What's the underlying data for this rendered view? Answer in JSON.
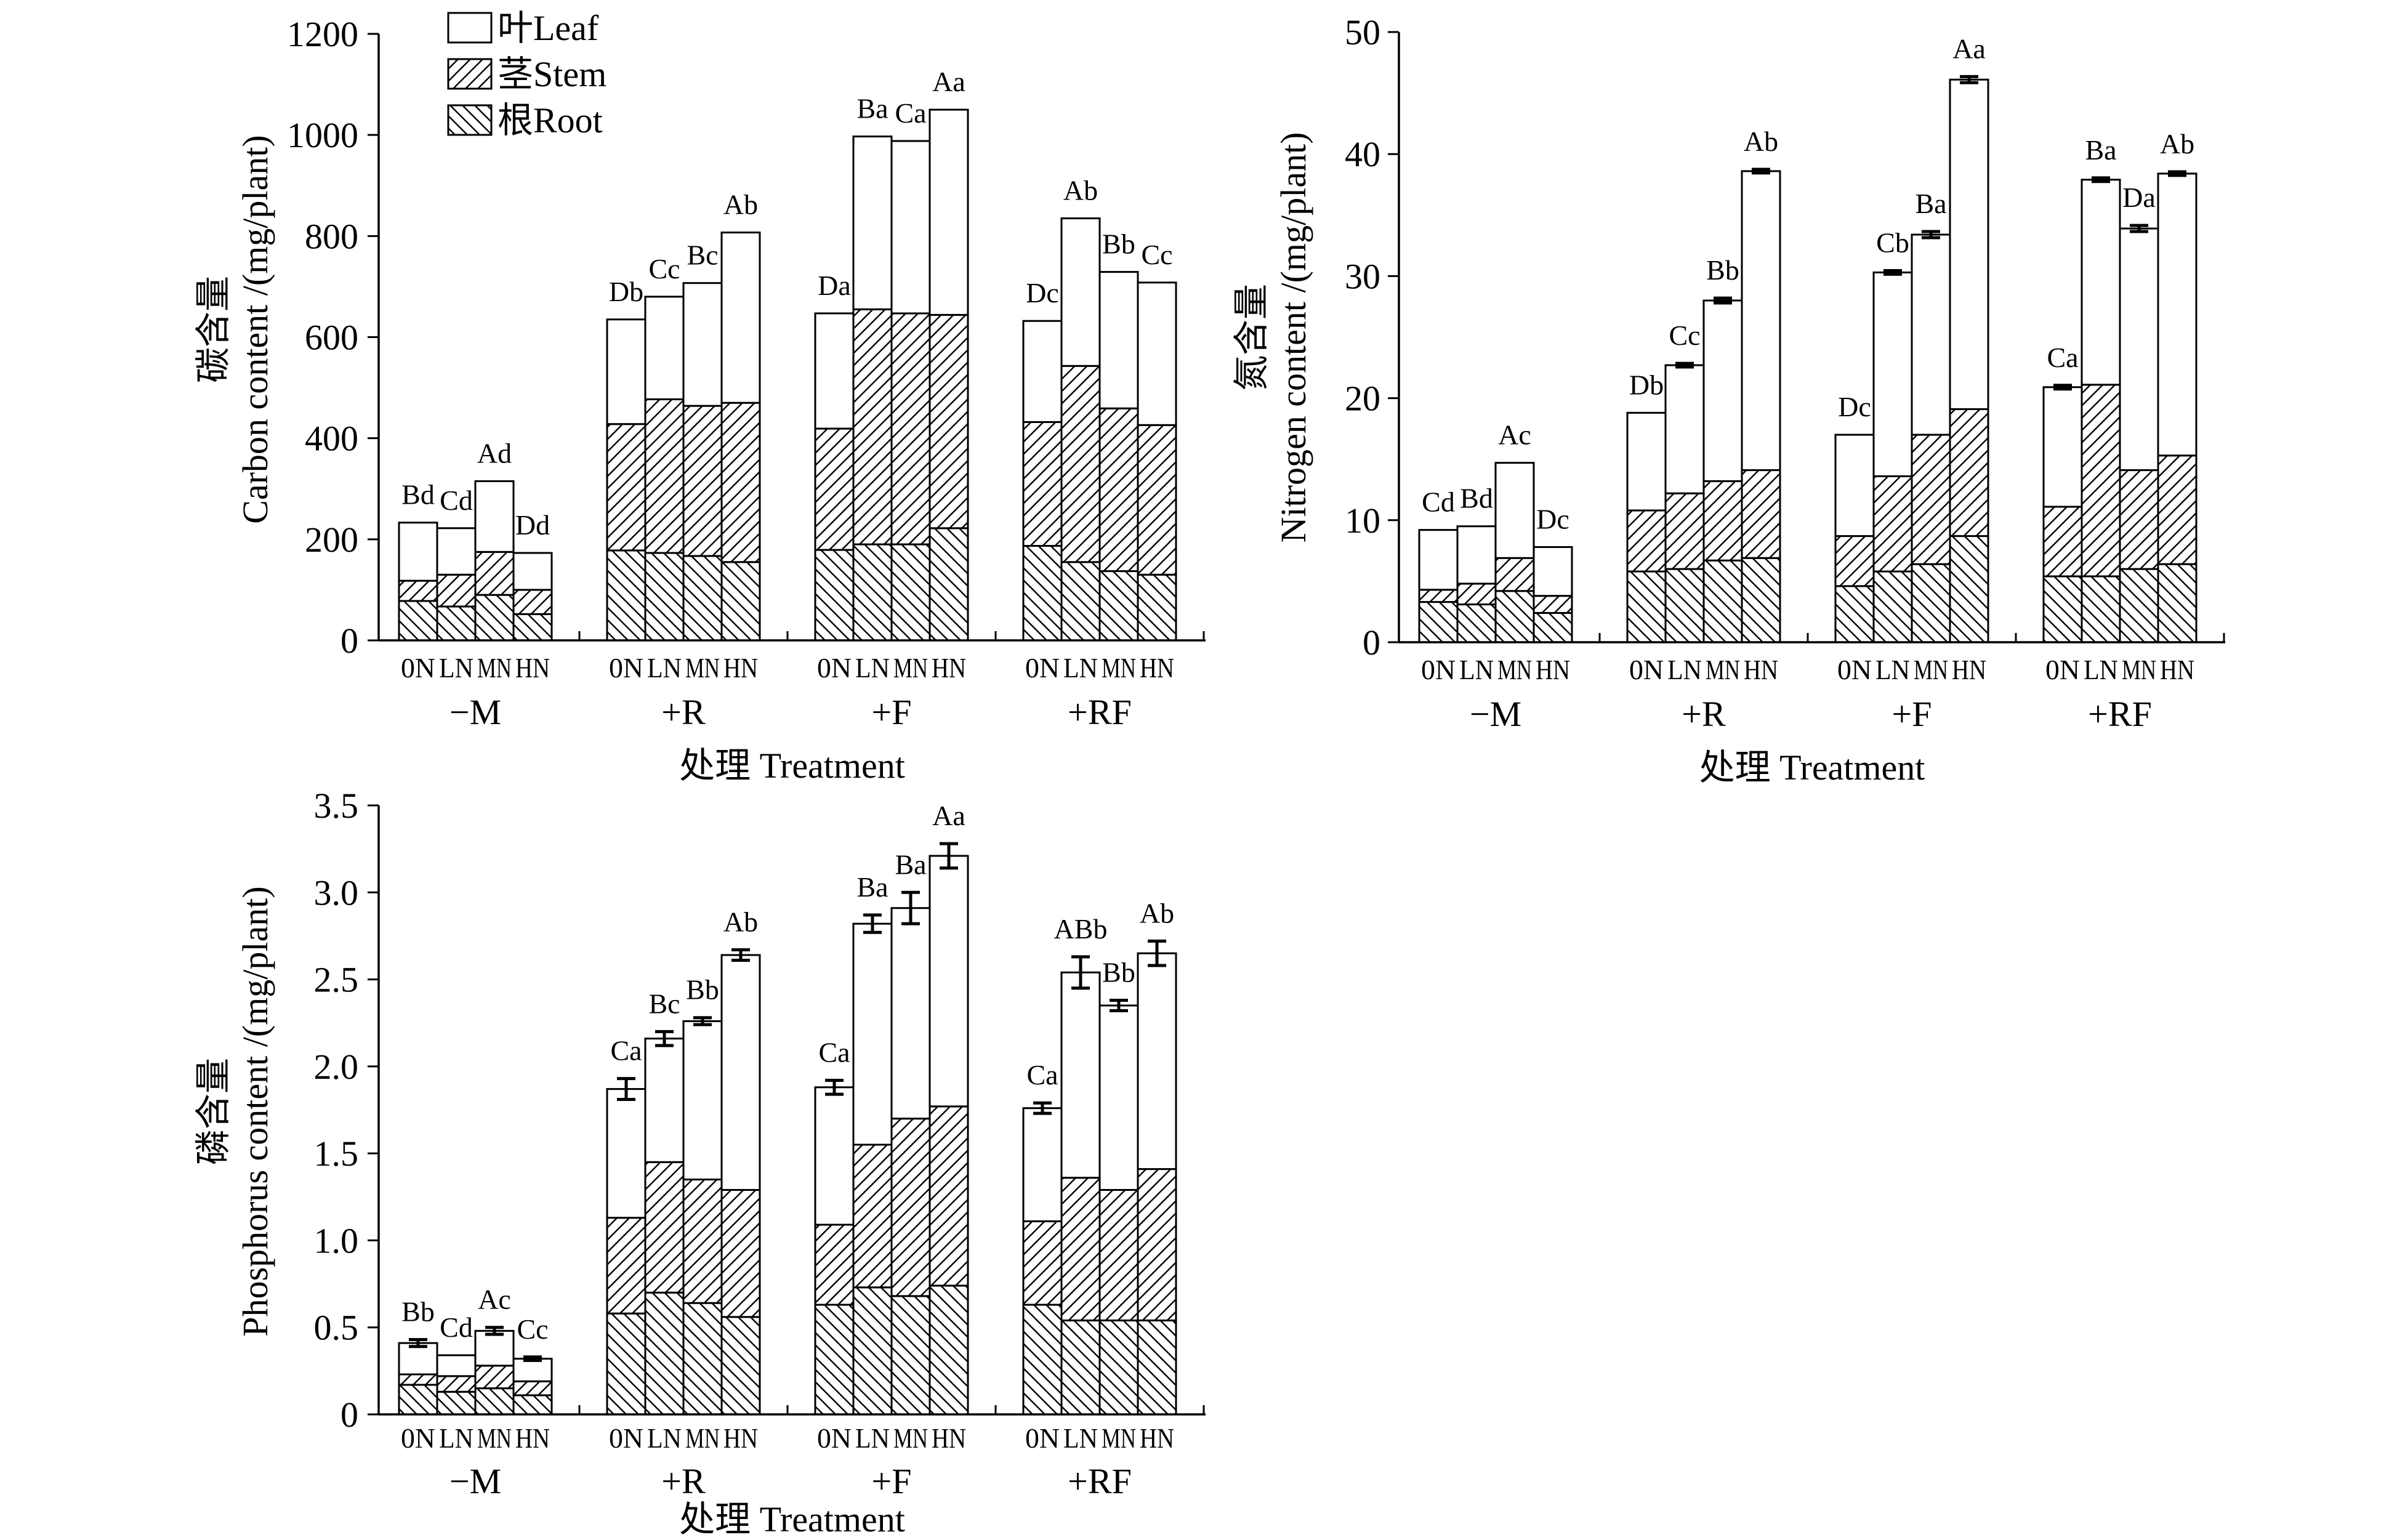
{
  "colors": {
    "ink": "#000000",
    "background": "#ffffff"
  },
  "chart_data": [
    {
      "type": "bar",
      "stacked": true,
      "ylabel_cn": "碳含量",
      "ylabel": "Carbon content /(mg/plant)",
      "xlabel": "处理 Treatment",
      "groups": [
        "−M",
        "+R",
        "+F",
        "+RF"
      ],
      "categories": [
        "0N",
        "LN",
        "MN",
        "HN"
      ],
      "ylim": [
        0,
        1200
      ],
      "yticks": [
        0,
        200,
        400,
        600,
        800,
        1000,
        1200
      ],
      "ytick_labels": [
        "0",
        "200",
        "400",
        "600",
        "800",
        "1000",
        "1200"
      ],
      "grid": false,
      "legend": {
        "placement": "top-left",
        "entries": {
          "leaf": "叶Leaf",
          "stem": "茎Stem",
          "root": "根Root"
        }
      },
      "values": {
        "root": [
          [
            78,
            67,
            90,
            52
          ],
          [
            178,
            173,
            167,
            155
          ],
          [
            179,
            190,
            190,
            222
          ],
          [
            187,
            155,
            137,
            130
          ]
        ],
        "stem": [
          [
            40,
            63,
            85,
            48
          ],
          [
            250,
            304,
            297,
            315
          ],
          [
            240,
            465,
            457,
            422
          ],
          [
            245,
            388,
            322,
            296
          ]
        ],
        "leaf": [
          [
            115,
            92,
            140,
            73
          ],
          [
            207,
            203,
            243,
            337
          ],
          [
            228,
            342,
            341,
            406
          ],
          [
            200,
            292,
            270,
            282
          ]
        ]
      },
      "error": [
        [
          0,
          0,
          0,
          0
        ],
        [
          0,
          0,
          0,
          0
        ],
        [
          0,
          0,
          0,
          0
        ],
        [
          0,
          0,
          0,
          0
        ]
      ],
      "letters": [
        [
          "Bd",
          "Cd",
          "Ad",
          "Dd"
        ],
        [
          "Db",
          "Cc",
          "Bc",
          "Ab"
        ],
        [
          "Da",
          "Ba",
          "Ca",
          "Aa"
        ],
        [
          "Dc",
          "Ab",
          "Bb",
          "Cc"
        ]
      ]
    },
    {
      "type": "bar",
      "stacked": true,
      "ylabel_cn": "氮含量",
      "ylabel": "Nitrogen content /(mg/plant)",
      "xlabel": "处理 Treatment",
      "groups": [
        "−M",
        "+R",
        "+F",
        "+RF"
      ],
      "categories": [
        "0N",
        "LN",
        "MN",
        "HN"
      ],
      "ylim": [
        0,
        50
      ],
      "yticks": [
        0,
        10,
        20,
        30,
        40,
        50
      ],
      "ytick_labels": [
        "0",
        "10",
        "20",
        "30",
        "40",
        "50"
      ],
      "grid": false,
      "legend": null,
      "values": {
        "root": [
          [
            3.3,
            3.1,
            4.2,
            2.4
          ],
          [
            5.8,
            6.0,
            6.7,
            6.9
          ],
          [
            4.6,
            5.8,
            6.4,
            8.7
          ],
          [
            5.4,
            5.4,
            6.0,
            6.4
          ]
        ],
        "stem": [
          [
            1.0,
            1.7,
            2.7,
            1.4
          ],
          [
            5.0,
            6.2,
            6.5,
            7.2
          ],
          [
            4.1,
            7.8,
            10.6,
            10.4
          ],
          [
            5.7,
            15.7,
            8.1,
            8.9
          ]
        ],
        "leaf": [
          [
            4.9,
            4.7,
            7.8,
            4.0
          ],
          [
            8.0,
            10.5,
            14.8,
            24.5
          ],
          [
            8.3,
            16.7,
            16.4,
            27.0
          ],
          [
            9.8,
            16.8,
            19.8,
            23.1
          ]
        ]
      },
      "error": [
        [
          0,
          0,
          0,
          0
        ],
        [
          0,
          0.15,
          0.2,
          0.15
        ],
        [
          0,
          0.15,
          0.25,
          0.25
        ],
        [
          0.15,
          0.15,
          0.25,
          0.15
        ]
      ],
      "letters": [
        [
          "Cd",
          "Bd",
          "Ac",
          "Dc"
        ],
        [
          "Db",
          "Cc",
          "Bb",
          "Ab"
        ],
        [
          "Dc",
          "Cb",
          "Ba",
          "Aa"
        ],
        [
          "Ca",
          "Ba",
          "Da",
          "Ab"
        ]
      ]
    },
    {
      "type": "bar",
      "stacked": true,
      "ylabel_cn": "磷含量",
      "ylabel": "Phosphorus content /(mg/plant)",
      "xlabel": "处理 Treatment",
      "groups": [
        "−M",
        "+R",
        "+F",
        "+RF"
      ],
      "categories": [
        "0N",
        "LN",
        "MN",
        "HN"
      ],
      "ylim": [
        0,
        3.5
      ],
      "yticks": [
        0,
        0.5,
        1.0,
        1.5,
        2.0,
        2.5,
        3.0,
        3.5
      ],
      "ytick_labels": [
        "0",
        "0.5",
        "1.0",
        "1.5",
        "2.0",
        "2.5",
        "3.0",
        "3.5"
      ],
      "grid": false,
      "legend": null,
      "values": {
        "root": [
          [
            0.17,
            0.13,
            0.15,
            0.11
          ],
          [
            0.58,
            0.7,
            0.64,
            0.56
          ],
          [
            0.63,
            0.73,
            0.68,
            0.74
          ],
          [
            0.63,
            0.54,
            0.54,
            0.54
          ]
        ],
        "stem": [
          [
            0.06,
            0.09,
            0.13,
            0.08
          ],
          [
            0.55,
            0.75,
            0.71,
            0.73
          ],
          [
            0.46,
            0.82,
            1.02,
            1.03
          ],
          [
            0.48,
            0.82,
            0.75,
            0.87
          ]
        ],
        "leaf": [
          [
            0.18,
            0.12,
            0.2,
            0.13
          ],
          [
            0.74,
            0.71,
            0.91,
            1.35
          ],
          [
            0.79,
            1.27,
            1.21,
            1.44
          ],
          [
            0.65,
            1.18,
            1.06,
            1.24
          ]
        ]
      },
      "error": [
        [
          0.02,
          0,
          0.02,
          0.01
        ],
        [
          0.06,
          0.04,
          0.02,
          0.03
        ],
        [
          0.04,
          0.05,
          0.09,
          0.07
        ],
        [
          0.03,
          0.09,
          0.03,
          0.07
        ]
      ],
      "letters": [
        [
          "Bb",
          "Cd",
          "Ac",
          "Cc"
        ],
        [
          "Ca",
          "Bc",
          "Bb",
          "Ab"
        ],
        [
          "Ca",
          "Ba",
          "Ba",
          "Aa"
        ],
        [
          "Ca",
          "ABb",
          "Bb",
          "Ab"
        ]
      ]
    }
  ]
}
